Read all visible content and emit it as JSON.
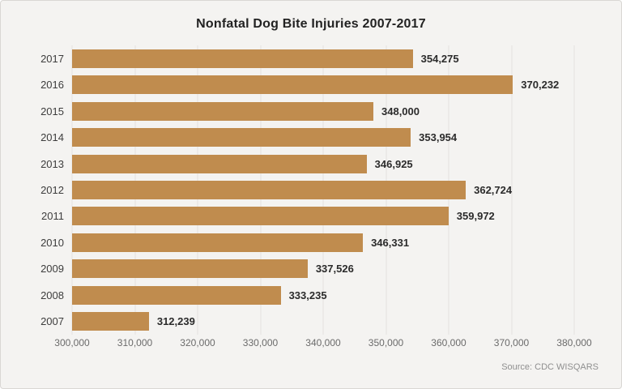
{
  "title": "Nonfatal Dog Bite Injuries 2007-2017",
  "source": "Source: CDC WISQARS",
  "colors": {
    "background": "#f4f3f1",
    "border": "#d9d7d4",
    "bar": "#c08c4e",
    "gridline": "#e4e1de",
    "title_text": "#222222",
    "value_text": "#2b2b2b",
    "axis_text": "#6b6b6b",
    "source_text": "#8f8f8f"
  },
  "chart_data": {
    "type": "bar",
    "orientation": "horizontal",
    "title": "Nonfatal Dog Bite Injuries 2007-2017",
    "categories": [
      "2017",
      "2016",
      "2015",
      "2014",
      "2013",
      "2012",
      "2011",
      "2010",
      "2009",
      "2008",
      "2007"
    ],
    "values": [
      354275,
      370232,
      348000,
      353954,
      346925,
      362724,
      359972,
      346331,
      337526,
      333235,
      312239
    ],
    "value_labels": [
      "354,275",
      "370,232",
      "348,000",
      "353,954",
      "346,925",
      "362,724",
      "359,972",
      "346,331",
      "337,526",
      "333,235",
      "312,239"
    ],
    "xlabel": "",
    "ylabel": "",
    "xlim": [
      300000,
      380000
    ],
    "x_ticks": [
      300000,
      310000,
      320000,
      330000,
      340000,
      350000,
      360000,
      370000,
      380000
    ],
    "x_tick_labels": [
      "300,000",
      "310,000",
      "320,000",
      "330,000",
      "340,000",
      "350,000",
      "360,000",
      "370,000",
      "380,000"
    ],
    "grid": true,
    "legend": false,
    "source": "Source: CDC WISQARS"
  }
}
